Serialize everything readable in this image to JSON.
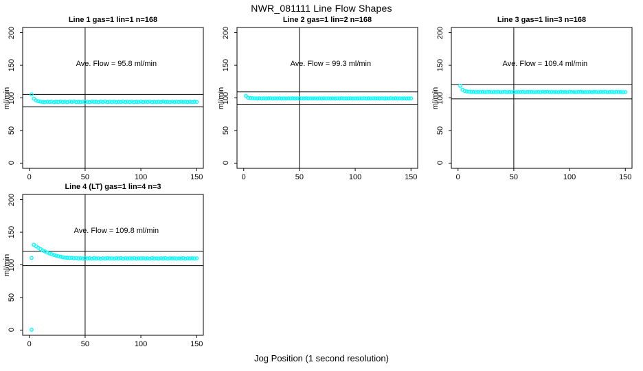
{
  "chart_data": {
    "type": "scatter",
    "title": "NWR_081111  Line Flow Shapes",
    "xlabel": "Jog Position (1 second resolution)",
    "ylabel": "ml/min",
    "x_ticks": [
      0,
      50,
      100,
      150
    ],
    "y_ticks": [
      0,
      50,
      100,
      150,
      200
    ],
    "xlim": [
      -6,
      156
    ],
    "ylim": [
      -8,
      208
    ],
    "grid": false,
    "point_color": "#00FFFF",
    "line_color": "#000000",
    "vline_x": 50,
    "annot_xy": [
      78,
      152
    ],
    "x_common": [
      2,
      4,
      6,
      8,
      10,
      12,
      14,
      16,
      18,
      20,
      22,
      24,
      26,
      28,
      30,
      32,
      34,
      36,
      38,
      40,
      42,
      44,
      46,
      48,
      50,
      52,
      54,
      56,
      58,
      60,
      62,
      64,
      66,
      68,
      70,
      72,
      74,
      76,
      78,
      80,
      82,
      84,
      86,
      88,
      90,
      92,
      94,
      96,
      98,
      100,
      102,
      104,
      106,
      108,
      110,
      112,
      114,
      116,
      118,
      120,
      122,
      124,
      126,
      128,
      130,
      132,
      134,
      136,
      138,
      140,
      142,
      144,
      146,
      148,
      150
    ],
    "panels": [
      {
        "title": "Line 1 gas=1 lin=1 n=168",
        "annotation": "Ave. Flow =  95.8  ml/min",
        "ave_flow": 95.8,
        "ref_lines": [
          105.4,
          86.2
        ],
        "y": [
          105.5,
          99.0,
          96.2,
          94.8,
          94.2,
          93.9,
          93.7,
          94.1,
          93.8,
          94.2,
          93.6,
          94.0,
          93.7,
          94.3,
          93.8,
          94.1,
          93.6,
          94.2,
          93.9,
          94.4,
          93.7,
          94.0,
          93.6,
          94.2,
          93.8,
          94.1,
          93.7,
          94.3,
          93.9,
          94.0,
          93.6,
          94.2,
          93.8,
          94.4,
          93.7,
          94.1,
          93.8,
          94.2,
          93.6,
          94.0,
          93.9,
          94.3,
          93.7,
          94.1,
          93.8,
          94.2,
          93.6,
          94.0,
          93.8,
          94.3,
          93.7,
          94.1,
          93.9,
          94.2,
          93.6,
          94.0,
          93.8,
          94.1,
          93.7,
          94.3,
          93.9,
          94.0,
          93.6,
          94.2,
          93.8,
          94.1,
          93.7,
          94.2,
          93.9,
          94.0,
          93.7,
          94.1,
          93.8,
          94.0,
          93.9
        ]
      },
      {
        "title": "Line 2 gas=1 lin=2 n=168",
        "annotation": "Ave. Flow =  99.3  ml/min",
        "ave_flow": 99.3,
        "ref_lines": [
          109.2,
          89.4
        ],
        "y": [
          103.0,
          100.3,
          99.8,
          99.5,
          99.4,
          99.2,
          99.5,
          99.1,
          99.4,
          99.0,
          99.3,
          99.5,
          99.1,
          99.4,
          99.2,
          99.5,
          99.0,
          99.3,
          99.1,
          99.4,
          99.2,
          99.5,
          99.1,
          99.3,
          99.0,
          99.4,
          99.2,
          99.5,
          99.1,
          99.3,
          99.2,
          99.4,
          99.0,
          99.3,
          99.1,
          99.5,
          99.2,
          99.4,
          99.1,
          99.3,
          99.0,
          99.4,
          99.2,
          99.5,
          99.1,
          99.3,
          99.2,
          99.4,
          99.0,
          99.3,
          99.1,
          99.4,
          99.2,
          99.5,
          99.1,
          99.3,
          99.0,
          99.4,
          99.2,
          99.3,
          99.1,
          99.4,
          99.0,
          99.3,
          99.2,
          99.5,
          99.1,
          99.3,
          99.2,
          99.4,
          99.1,
          99.3,
          99.0,
          99.2,
          99.3
        ]
      },
      {
        "title": "Line 3 gas=1 lin=3 n=168",
        "annotation": "Ave. Flow =  109.4  ml/min",
        "ave_flow": 109.4,
        "ref_lines": [
          120.3,
          98.5
        ],
        "y": [
          118.5,
          112.5,
          110.5,
          109.8,
          109.4,
          109.1,
          109.3,
          108.9,
          109.2,
          109.0,
          109.3,
          108.8,
          109.1,
          109.4,
          108.9,
          109.2,
          109.0,
          109.3,
          108.9,
          109.1,
          109.4,
          108.8,
          109.2,
          109.0,
          109.3,
          108.9,
          109.1,
          109.0,
          109.4,
          108.8,
          109.2,
          109.1,
          109.3,
          108.9,
          109.0,
          109.2,
          108.8,
          109.3,
          109.1,
          109.4,
          108.9,
          109.2,
          109.0,
          109.1,
          108.8,
          109.3,
          109.0,
          109.2,
          108.9,
          109.4,
          109.1,
          109.0,
          108.8,
          109.2,
          109.3,
          108.9,
          109.1,
          109.0,
          109.2,
          108.8,
          109.3,
          109.1,
          108.9,
          109.2,
          109.0,
          109.4,
          108.8,
          109.1,
          109.2,
          108.9,
          109.3,
          109.0,
          109.1,
          108.9,
          109.0
        ]
      },
      {
        "title": "Line 4 (LT) gas=1 lin=4 n=3",
        "annotation": "Ave. Flow =  109.8  ml/min",
        "ave_flow": 109.8,
        "ref_lines": [
          120.8,
          98.8
        ],
        "x": [
          2,
          2,
          4,
          6,
          8,
          10,
          12,
          14,
          16,
          18,
          20,
          22,
          24,
          26,
          28,
          30,
          32,
          34,
          36,
          38,
          40,
          42,
          44,
          46,
          48,
          50,
          52,
          54,
          56,
          58,
          60,
          62,
          64,
          66,
          68,
          70,
          72,
          74,
          76,
          78,
          80,
          82,
          84,
          86,
          88,
          90,
          92,
          94,
          96,
          98,
          100,
          102,
          104,
          106,
          108,
          110,
          112,
          114,
          116,
          118,
          120,
          122,
          124,
          126,
          128,
          130,
          132,
          134,
          136,
          138,
          140,
          142,
          144,
          146,
          148,
          150
        ],
        "y": [
          0.5,
          110.5,
          130.8,
          128.4,
          126.2,
          124.1,
          122.3,
          120.6,
          119.0,
          117.6,
          116.3,
          115.2,
          114.1,
          113.2,
          112.4,
          111.7,
          111.1,
          110.9,
          110.5,
          110.7,
          110.1,
          110.4,
          109.8,
          110.2,
          109.7,
          110.3,
          109.9,
          110.1,
          109.6,
          110.2,
          109.8,
          110.0,
          109.5,
          110.1,
          109.7,
          110.2,
          109.8,
          110.0,
          109.6,
          110.1,
          109.8,
          110.2,
          109.6,
          110.0,
          109.7,
          110.1,
          109.8,
          110.2,
          109.6,
          110.0,
          109.8,
          110.1,
          109.7,
          110.0,
          109.6,
          110.2,
          109.8,
          110.0,
          109.7,
          110.1,
          109.8,
          110.2,
          109.6,
          110.0,
          109.8,
          110.1,
          109.7,
          110.0,
          109.8,
          110.2,
          109.6,
          110.0,
          109.8,
          110.1,
          109.7,
          110.0
        ]
      }
    ]
  }
}
